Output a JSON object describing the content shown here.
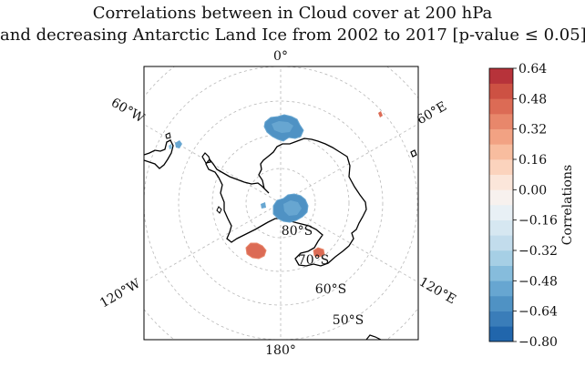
{
  "title": {
    "line1": "Correlations between in Cloud cover at 200 hPa",
    "line2": "and decreasing Antarctic Land Ice from 2002 to 2017 [p-value ≤ 0.05]"
  },
  "map": {
    "projection": "south polar stereographic",
    "longitude_labels": [
      "0°",
      "60°E",
      "120°E",
      "180°",
      "120°W",
      "60°W"
    ],
    "latitude_labels": [
      "80°S",
      "70°S",
      "60°S",
      "50°S"
    ],
    "regions": [
      {
        "name": "negative-cluster-south-atlantic",
        "value": -0.48
      },
      {
        "name": "negative-cluster-antarctic-interior",
        "value": -0.48
      },
      {
        "name": "negative-spot-south-america",
        "value": -0.4
      },
      {
        "name": "positive-cluster-ross-sea-west",
        "value": 0.5
      },
      {
        "name": "positive-cluster-ross-sea-east",
        "value": 0.5
      },
      {
        "name": "positive-spot-indian-ocean",
        "value": 0.45
      }
    ]
  },
  "colorbar": {
    "label": "Correlations",
    "ticks": [
      "0.64",
      "0.48",
      "0.32",
      "0.16",
      "0.00",
      "−0.16",
      "−0.32",
      "−0.48",
      "−0.64",
      "−0.80"
    ],
    "min": -0.8,
    "max": 0.64,
    "step": 0.08,
    "colors_bottom_to_top": [
      "#2166ac",
      "#3a7db9",
      "#4f92c4",
      "#67a6d1",
      "#86bcdc",
      "#a6cfe5",
      "#c2dcec",
      "#d6e7f1",
      "#e8f0f5",
      "#f7f1ee",
      "#fbe6da",
      "#fbd3bd",
      "#f8bd9f",
      "#f2a283",
      "#e8876b",
      "#dc6b55",
      "#cd5143",
      "#b7333a"
    ]
  }
}
